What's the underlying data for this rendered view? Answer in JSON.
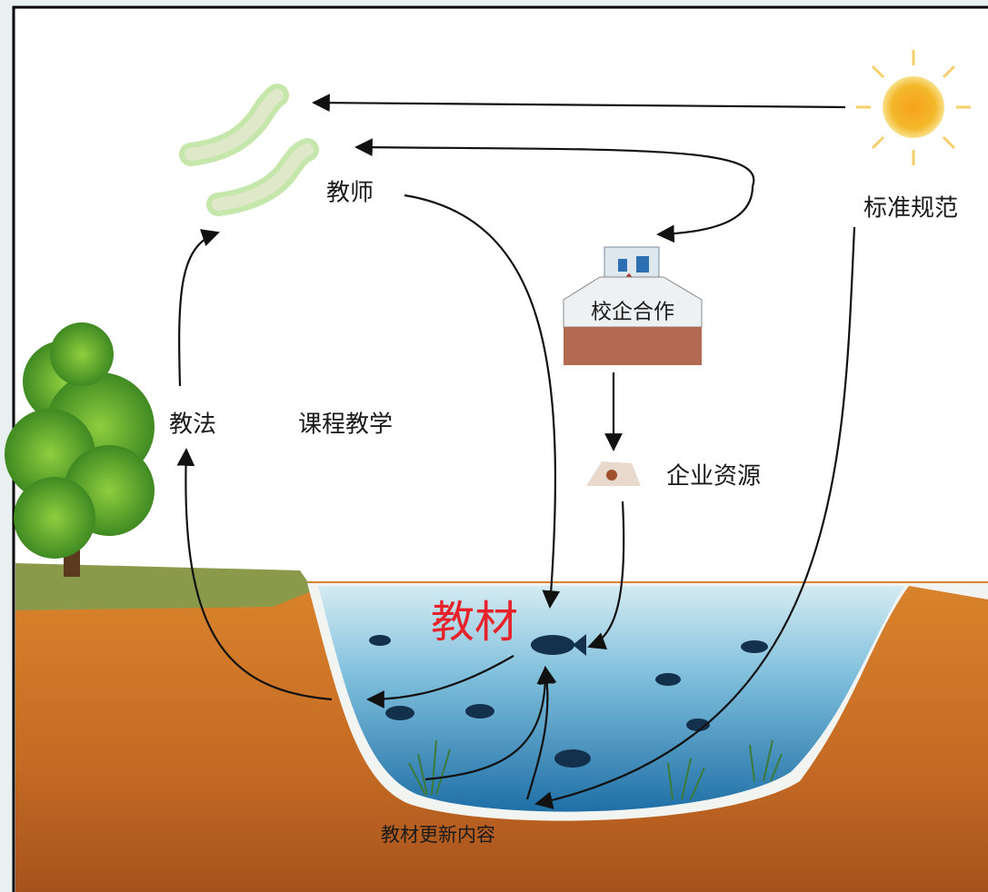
{
  "nodes": [
    {
      "label": "教师"
    },
    {
      "label": "标准规范"
    },
    {
      "label": "校企合作"
    },
    {
      "label": "教法"
    },
    {
      "label": "课程教学"
    },
    {
      "label": "企业资源"
    },
    {
      "label": "教材"
    },
    {
      "label": "教材更新内容"
    }
  ]
}
